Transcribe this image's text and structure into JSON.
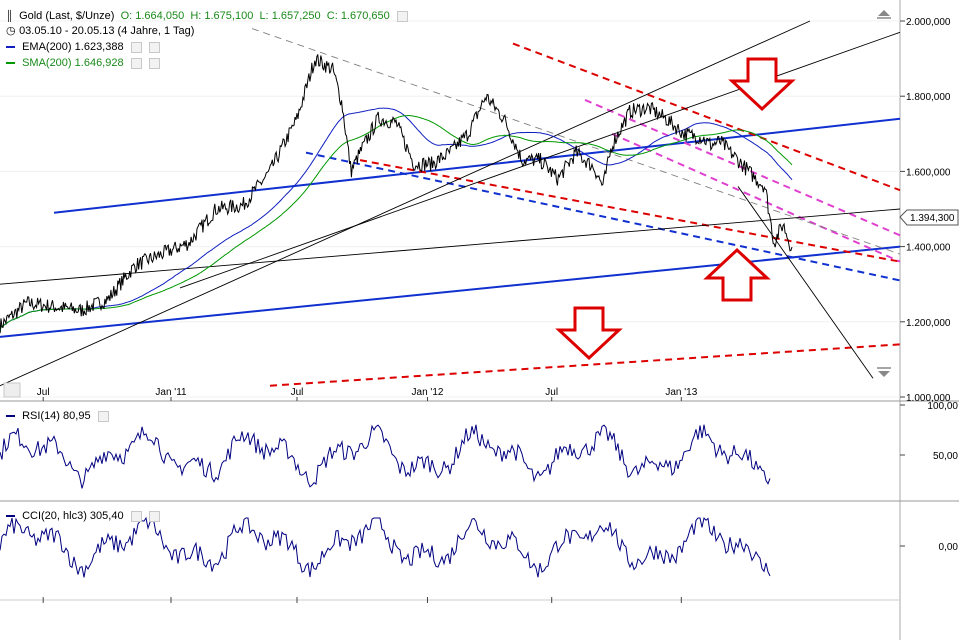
{
  "header": {
    "instrument": "Gold (Last, $/Unze)",
    "open_label": "O:",
    "open": "1.664,050",
    "high_label": "H:",
    "high": "1.675,100",
    "low_label": "L:",
    "low": "1.657,250",
    "close_label": "C:",
    "close": "1.670,650",
    "period": "03.05.10 - 20.05.13 (4 Jahre, 1 Tag)"
  },
  "legend": {
    "ema_label": "EMA(200)",
    "ema_value": "1.623,388",
    "ema_color": "#1020c0",
    "sma_label": "SMA(200)",
    "sma_value": "1.646,928",
    "sma_color": "#009900"
  },
  "rsi": {
    "label": "RSI(14)",
    "value": "80,95"
  },
  "cci": {
    "label": "CCI(20, hlc3)",
    "value": "305,40"
  },
  "price_badge": "1.394,300",
  "chart_data": [
    {
      "type": "line",
      "x_axis": [
        "Jul",
        "Jan '11",
        "Jul",
        "Jan '12",
        "Jul",
        "Jan '13"
      ],
      "y_axis_ticks": [
        "2.000,000",
        "1.800,000",
        "1.600,000",
        "1.400,000",
        "1.200,000",
        "1.000,000"
      ],
      "ylim": [
        1000,
        2000
      ],
      "series": [
        {
          "name": "Gold (Last, $/Unze)",
          "color": "#000000",
          "x": [
            0,
            0.03,
            0.06,
            0.09,
            0.12,
            0.15,
            0.18,
            0.21,
            0.24,
            0.27,
            0.3,
            0.33,
            0.35,
            0.37,
            0.38,
            0.39,
            0.4,
            0.42,
            0.44,
            0.46,
            0.48,
            0.5,
            0.52,
            0.54,
            0.56,
            0.58,
            0.6,
            0.62,
            0.64,
            0.66,
            0.67,
            0.68,
            0.7,
            0.72,
            0.74,
            0.76,
            0.78,
            0.79,
            0.8,
            0.82,
            0.84,
            0.85,
            0.86,
            0.87,
            0.88
          ],
          "values": [
            1190,
            1250,
            1240,
            1230,
            1260,
            1350,
            1380,
            1410,
            1500,
            1510,
            1600,
            1740,
            1900,
            1870,
            1780,
            1600,
            1650,
            1740,
            1730,
            1620,
            1620,
            1650,
            1700,
            1800,
            1740,
            1630,
            1630,
            1580,
            1650,
            1610,
            1560,
            1670,
            1760,
            1770,
            1740,
            1700,
            1690,
            1670,
            1680,
            1630,
            1580,
            1560,
            1410,
            1460,
            1394
          ]
        }
      ],
      "trendlines": [
        {
          "color": "#1030d0",
          "style": "solid",
          "from": [
            0.06,
            1490
          ],
          "to": [
            1.0,
            1740
          ]
        },
        {
          "color": "#1030d0",
          "style": "solid",
          "from": [
            0.0,
            1160
          ],
          "to": [
            1.0,
            1400
          ]
        },
        {
          "color": "#1030d0",
          "style": "dashed",
          "from": [
            0.34,
            1650
          ],
          "to": [
            1.0,
            1310
          ]
        },
        {
          "color": "#dd0000",
          "style": "dashed",
          "from": [
            0.57,
            1940
          ],
          "to": [
            1.0,
            1550
          ]
        },
        {
          "color": "#dd0000",
          "style": "dashed",
          "from": [
            0.4,
            1630
          ],
          "to": [
            1.0,
            1360
          ]
        },
        {
          "color": "#dd0000",
          "style": "dashed",
          "from": [
            0.3,
            1030
          ],
          "to": [
            1.0,
            1140
          ]
        },
        {
          "color": "#e040d0",
          "style": "dashed",
          "from": [
            0.65,
            1790
          ],
          "to": [
            1.0,
            1430
          ]
        },
        {
          "color": "#e040d0",
          "style": "dashed",
          "from": [
            0.68,
            1700
          ],
          "to": [
            1.0,
            1360
          ]
        },
        {
          "color": "#808080",
          "style": "dashed",
          "from": [
            0.28,
            1980
          ],
          "to": [
            1.0,
            1380
          ]
        },
        {
          "color": "#000000",
          "style": "solid",
          "from": [
            0.0,
            1300
          ],
          "to": [
            1.0,
            1500
          ]
        },
        {
          "color": "#000000",
          "style": "solid",
          "from": [
            0.0,
            1030
          ],
          "to": [
            0.9,
            2000
          ]
        },
        {
          "color": "#000000",
          "style": "solid",
          "from": [
            0.2,
            1290
          ],
          "to": [
            1.0,
            1970
          ]
        },
        {
          "color": "#000000",
          "style": "solid",
          "from": [
            0.82,
            1560
          ],
          "to": [
            0.97,
            1050
          ]
        }
      ],
      "arrows": [
        {
          "direction": "down",
          "color": "#dd0000"
        },
        {
          "direction": "up",
          "color": "#dd0000"
        },
        {
          "direction": "down",
          "color": "#dd0000"
        }
      ]
    },
    {
      "type": "line",
      "title": "RSI(14)",
      "y_axis_ticks": [
        "100,00",
        "50,00"
      ],
      "ylim": [
        0,
        100
      ],
      "series": [
        {
          "name": "RSI(14)",
          "color": "#000080"
        }
      ]
    },
    {
      "type": "line",
      "title": "CCI(20, hlc3)",
      "y_axis_ticks": [
        "0,00"
      ],
      "series": [
        {
          "name": "CCI(20, hlc3)",
          "color": "#000080"
        }
      ]
    }
  ]
}
